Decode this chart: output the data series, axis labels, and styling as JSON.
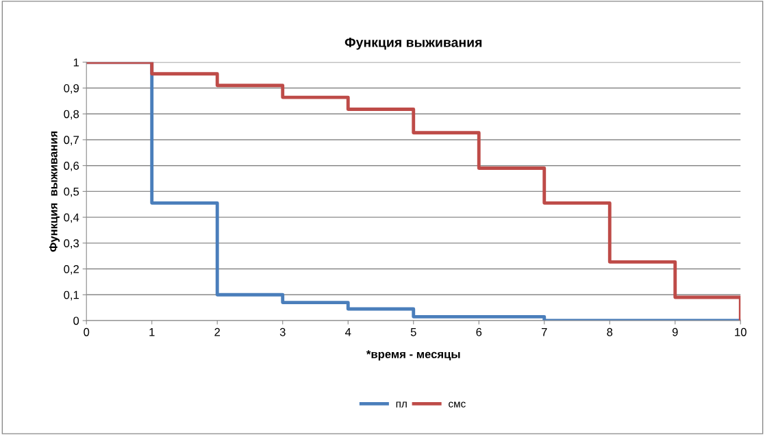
{
  "chart_data": {
    "type": "step",
    "title": "Функция выживания",
    "xlabel": "*время - месяцы",
    "ylabel": "Функция  выживания",
    "x": [
      0,
      1,
      2,
      3,
      4,
      5,
      6,
      7,
      8,
      9,
      10
    ],
    "series": [
      {
        "name": "пл",
        "color": "#4a7ebb",
        "values": [
          1,
          0.455,
          0.1,
          0.07,
          0.045,
          0.015,
          0.015,
          0,
          0,
          0,
          0
        ]
      },
      {
        "name": "смс",
        "color": "#be4b48",
        "values": [
          1,
          0.955,
          0.91,
          0.864,
          0.818,
          0.727,
          0.59,
          0.455,
          0.227,
          0.09,
          0
        ]
      }
    ],
    "xlim": [
      0,
      10
    ],
    "xticks": [
      0,
      1,
      2,
      3,
      4,
      5,
      6,
      7,
      8,
      9,
      10
    ],
    "ylim": [
      0,
      1
    ],
    "yticks": [
      {
        "value": 0,
        "label": "0"
      },
      {
        "value": 0.1,
        "label": "0,1"
      },
      {
        "value": 0.2,
        "label": "0,2"
      },
      {
        "value": 0.3,
        "label": "0,3"
      },
      {
        "value": 0.4,
        "label": "0,4"
      },
      {
        "value": 0.5,
        "label": "0,5"
      },
      {
        "value": 0.6,
        "label": "0,6"
      },
      {
        "value": 0.7,
        "label": "0,7"
      },
      {
        "value": 0.8,
        "label": "0,8"
      },
      {
        "value": 0.9,
        "label": "0,9"
      },
      {
        "value": 1,
        "label": "1"
      }
    ],
    "grid": "y",
    "legend": "bottom",
    "marker": "none",
    "line_style": "solid"
  }
}
